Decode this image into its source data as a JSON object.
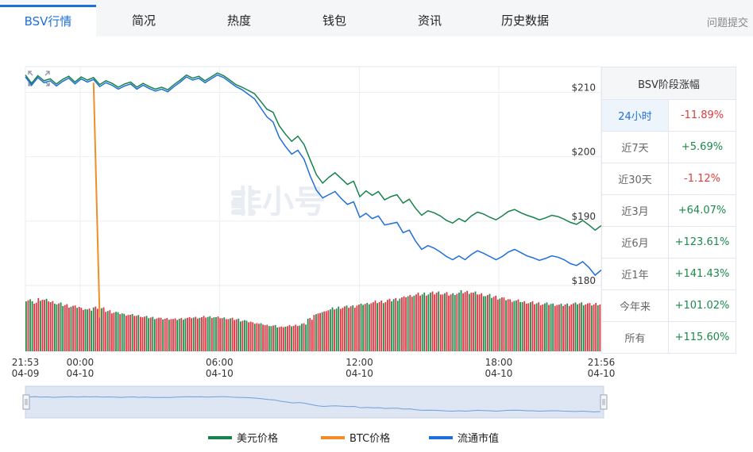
{
  "tabs": [
    {
      "label": "BSV行情",
      "active": true
    },
    {
      "label": "简况",
      "active": false
    },
    {
      "label": "热度",
      "active": false
    },
    {
      "label": "钱包",
      "active": false
    },
    {
      "label": "资讯",
      "active": false
    },
    {
      "label": "历史数据",
      "active": false
    }
  ],
  "help_label": "问题提交",
  "watermark": "非小号",
  "chart_data": {
    "type": "line",
    "y_ticks": [
      "$210",
      "$200",
      "$190",
      "$180"
    ],
    "ylim": [
      180,
      214
    ],
    "x_ticks": [
      {
        "time": "21:53",
        "date": "04-09"
      },
      {
        "time": "00:00",
        "date": "04-10"
      },
      {
        "time": "06:00",
        "date": "04-10"
      },
      {
        "time": "12:00",
        "date": "04-10"
      },
      {
        "time": "18:00",
        "date": "04-10"
      },
      {
        "time": "21:56",
        "date": "04-10"
      }
    ],
    "series": [
      {
        "name": "美元价格",
        "color": "#17824b",
        "values": [
          212.7,
          211.4,
          212.6,
          211.8,
          212.1,
          211.3,
          212.0,
          212.5,
          211.6,
          212.4,
          211.9,
          212.3,
          211.2,
          211.8,
          211.4,
          210.8,
          211.3,
          211.6,
          210.8,
          211.4,
          210.9,
          210.5,
          210.8,
          210.4,
          211.2,
          211.9,
          212.7,
          212.2,
          212.5,
          211.8,
          212.4,
          213.0,
          212.6,
          211.9,
          211.2,
          210.8,
          210.3,
          209.8,
          208.6,
          207.4,
          206.9,
          204.8,
          203.5,
          202.4,
          203.2,
          201.9,
          199.5,
          197.2,
          195.9,
          196.8,
          197.5,
          196.6,
          195.7,
          196.2,
          193.8,
          194.7,
          194.0,
          194.6,
          193.3,
          193.8,
          194.1,
          192.8,
          193.4,
          192.0,
          190.9,
          191.6,
          191.3,
          190.8,
          190.1,
          189.7,
          190.4,
          189.9,
          190.8,
          191.4,
          191.1,
          190.6,
          190.2,
          190.8,
          191.5,
          191.8,
          191.3,
          190.9,
          190.6,
          190.2,
          190.5,
          190.9,
          190.7,
          190.3,
          189.8,
          189.5,
          190.1,
          189.4,
          188.6,
          189.3
        ]
      },
      {
        "name": "BTC价格",
        "color": "#f28c28",
        "values": [
          null,
          null,
          null,
          null,
          null,
          null,
          null,
          null,
          null,
          null,
          null,
          211.5,
          175.0,
          null,
          null,
          null,
          null,
          null,
          null,
          null,
          null,
          null,
          null,
          null,
          null,
          null,
          null,
          null,
          null,
          null,
          null,
          null,
          null,
          null,
          null,
          null,
          null,
          null,
          null,
          null,
          null,
          null,
          null,
          null,
          null,
          null,
          null,
          null,
          null,
          null,
          null,
          null,
          null,
          null,
          null,
          null,
          null,
          null,
          null,
          null,
          null,
          null,
          null,
          null,
          null,
          null,
          null,
          null,
          null,
          null,
          null,
          null,
          null,
          null,
          null,
          null,
          null,
          null,
          null,
          null,
          null,
          null,
          null,
          null,
          null,
          null,
          null,
          null,
          null,
          null,
          null,
          null,
          null,
          null
        ]
      },
      {
        "name": "流通市值",
        "color": "#1f6fd8",
        "values": [
          212.4,
          211.1,
          212.3,
          211.5,
          211.8,
          211.0,
          211.7,
          212.2,
          211.3,
          212.1,
          211.6,
          212.0,
          210.9,
          211.5,
          211.1,
          210.5,
          211.0,
          211.3,
          210.5,
          211.1,
          210.6,
          210.2,
          210.5,
          210.1,
          210.9,
          211.6,
          212.4,
          211.9,
          212.2,
          211.5,
          212.1,
          212.7,
          212.3,
          211.6,
          210.9,
          210.4,
          209.7,
          209.0,
          207.6,
          206.2,
          205.4,
          203.0,
          201.6,
          200.4,
          201.0,
          199.6,
          197.0,
          194.8,
          193.6,
          194.1,
          194.6,
          193.5,
          192.6,
          193.0,
          190.6,
          191.2,
          190.4,
          190.8,
          189.4,
          189.6,
          189.8,
          188.2,
          188.6,
          186.9,
          185.6,
          186.2,
          185.8,
          185.2,
          184.5,
          184.0,
          184.6,
          184.0,
          184.8,
          185.4,
          185.0,
          184.5,
          184.0,
          184.5,
          185.2,
          185.6,
          185.1,
          184.6,
          184.3,
          183.9,
          184.2,
          184.6,
          184.4,
          184.0,
          183.4,
          183.1,
          183.7,
          182.8,
          181.6,
          182.4
        ]
      }
    ],
    "volume_series": {
      "name": "成交量",
      "values": [
        0.87,
        0.82,
        0.88,
        0.86,
        0.83,
        0.8,
        0.78,
        0.76,
        0.75,
        0.72,
        0.7,
        0.74,
        0.72,
        0.68,
        0.66,
        0.64,
        0.62,
        0.61,
        0.6,
        0.58,
        0.57,
        0.56,
        0.55,
        0.55,
        0.54,
        0.55,
        0.56,
        0.57,
        0.57,
        0.58,
        0.58,
        0.57,
        0.56,
        0.55,
        0.54,
        0.52,
        0.5,
        0.48,
        0.46,
        0.44,
        0.43,
        0.41,
        0.42,
        0.43,
        0.44,
        0.46,
        0.55,
        0.62,
        0.66,
        0.7,
        0.72,
        0.74,
        0.75,
        0.76,
        0.78,
        0.8,
        0.82,
        0.83,
        0.84,
        0.86,
        0.88,
        0.9,
        0.93,
        0.95,
        0.96,
        0.97,
        0.98,
        0.99,
        0.97,
        0.96,
        0.98,
        1.0,
        1.0,
        0.98,
        0.96,
        0.94,
        0.92,
        0.9,
        0.88,
        0.86,
        0.85,
        0.83,
        0.82,
        0.81,
        0.8,
        0.8,
        0.79,
        0.78,
        0.79,
        0.8,
        0.81,
        0.8,
        0.79,
        0.8
      ]
    },
    "navigator_values": [
      0.7,
      0.72,
      0.7,
      0.71,
      0.69,
      0.7,
      0.71,
      0.72,
      0.7,
      0.72,
      0.71,
      0.72,
      0.7,
      0.71,
      0.7,
      0.69,
      0.7,
      0.71,
      0.69,
      0.7,
      0.69,
      0.68,
      0.69,
      0.68,
      0.7,
      0.71,
      0.72,
      0.71,
      0.72,
      0.7,
      0.71,
      0.72,
      0.72,
      0.7,
      0.69,
      0.68,
      0.67,
      0.65,
      0.62,
      0.58,
      0.56,
      0.5,
      0.46,
      0.42,
      0.44,
      0.4,
      0.34,
      0.28,
      0.25,
      0.27,
      0.28,
      0.26,
      0.24,
      0.25,
      0.18,
      0.2,
      0.18,
      0.19,
      0.15,
      0.16,
      0.16,
      0.12,
      0.13,
      0.09,
      0.06,
      0.07,
      0.06,
      0.05,
      0.03,
      0.02,
      0.04,
      0.02,
      0.04,
      0.06,
      0.05,
      0.04,
      0.02,
      0.04,
      0.06,
      0.07,
      0.06,
      0.04,
      0.04,
      0.02,
      0.03,
      0.04,
      0.04,
      0.02,
      0.01,
      0.0,
      0.02,
      0.0,
      -0.02,
      0.0
    ]
  },
  "period_table": {
    "header": "BSV阶段涨幅",
    "rows": [
      {
        "period": "24小时",
        "change": "-11.89%",
        "trend": "down",
        "selected": true
      },
      {
        "period": "近7天",
        "change": "+5.69%",
        "trend": "up",
        "selected": false
      },
      {
        "period": "近30天",
        "change": "-1.12%",
        "trend": "down",
        "selected": false
      },
      {
        "period": "近3月",
        "change": "+64.07%",
        "trend": "up",
        "selected": false
      },
      {
        "period": "近6月",
        "change": "+123.61%",
        "trend": "up",
        "selected": false
      },
      {
        "period": "近1年",
        "change": "+141.43%",
        "trend": "up",
        "selected": false
      },
      {
        "period": "今年来",
        "change": "+101.02%",
        "trend": "up",
        "selected": false
      },
      {
        "period": "所有",
        "change": "+115.60%",
        "trend": "up",
        "selected": false
      }
    ]
  },
  "legend": [
    {
      "label": "美元价格",
      "color": "#17824b"
    },
    {
      "label": "BTC价格",
      "color": "#f28c28"
    },
    {
      "label": "流通市值",
      "color": "#1f6fd8"
    }
  ]
}
